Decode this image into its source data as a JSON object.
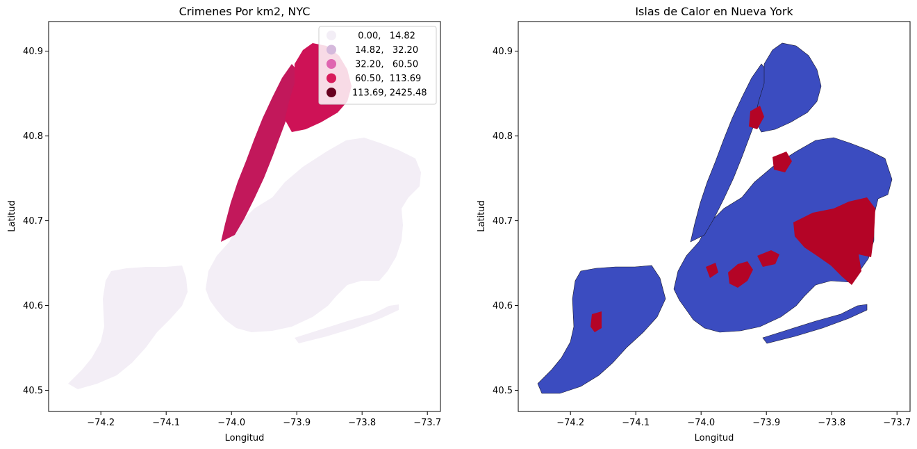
{
  "maps": [
    {
      "title": "Crimenes Por km2, NYC",
      "xlabel": "Longitud",
      "ylabel": "Latitud",
      "xlim": [
        -74.28,
        -73.68
      ],
      "ylim": [
        40.475,
        40.935
      ],
      "xticks": [
        -74.2,
        -74.1,
        -74.0,
        -73.9,
        -73.8,
        -73.7
      ],
      "xtick_labels": [
        "−74.2",
        "−74.1",
        "−74.0",
        "−73.9",
        "−73.8",
        "−73.7"
      ],
      "yticks": [
        40.5,
        40.6,
        40.7,
        40.8,
        40.9
      ],
      "ytick_labels": [
        "40.5",
        "40.6",
        "40.7",
        "40.8",
        "40.9"
      ],
      "legend": {
        "placement": "upper-right",
        "entries": [
          {
            "label": "  0.00,   14.82",
            "color": "#f3eef6"
          },
          {
            "label": " 14.82,   32.20",
            "color": "#d5b9dc"
          },
          {
            "label": " 32.20,   60.50",
            "color": "#df65b0"
          },
          {
            "label": " 60.50,  113.69",
            "color": "#d81a5b"
          },
          {
            "label": "113.69, 2425.48",
            "color": "#67001f"
          }
        ]
      }
    },
    {
      "title": "Islas de Calor en Nueva York",
      "xlabel": "Longitud",
      "ylabel": "Latitud",
      "xlim": [
        -74.28,
        -73.68
      ],
      "ylim": [
        40.475,
        40.935
      ],
      "xticks": [
        -74.2,
        -74.1,
        -74.0,
        -73.9,
        -73.8,
        -73.7
      ],
      "xtick_labels": [
        "−74.2",
        "−74.1",
        "−74.0",
        "−73.9",
        "−73.8",
        "−73.7"
      ],
      "yticks": [
        40.5,
        40.6,
        40.7,
        40.8,
        40.9
      ],
      "ytick_labels": [
        "40.5",
        "40.6",
        "40.7",
        "40.8",
        "40.9"
      ],
      "colors": {
        "base": "#3b4cc0",
        "hot": "#b40426",
        "edge": "#1a1a2e"
      }
    }
  ]
}
